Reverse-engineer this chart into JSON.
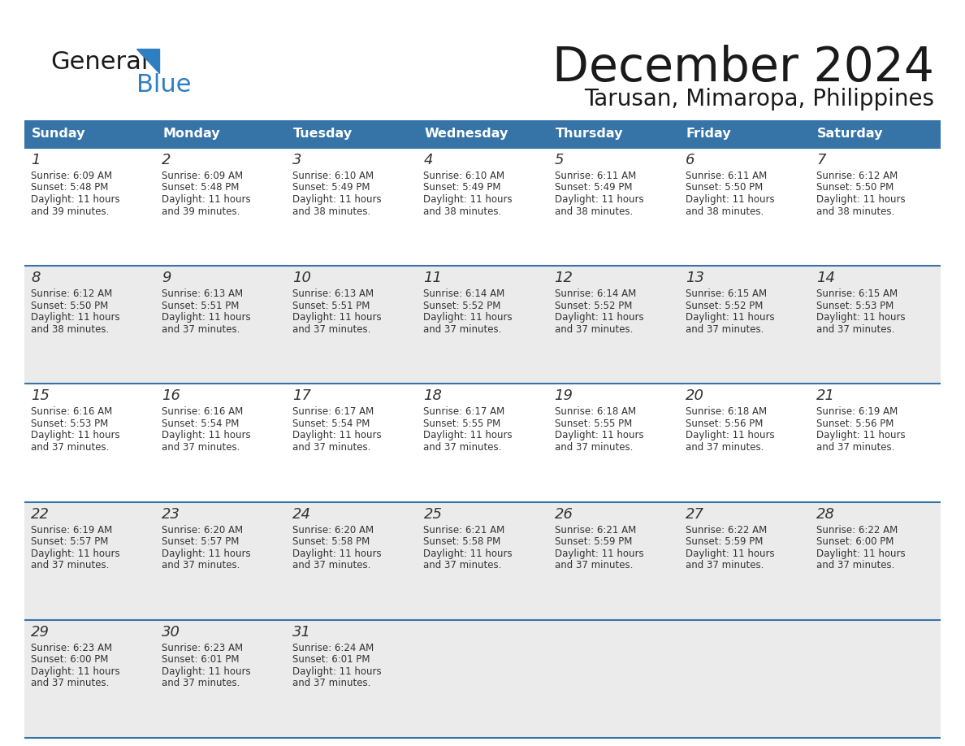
{
  "title": "December 2024",
  "subtitle": "Tarusan, Mimaropa, Philippines",
  "header_color": "#3674a8",
  "header_text_color": "#ffffff",
  "row_bg_colors": [
    "#ffffff",
    "#ebebeb",
    "#ffffff",
    "#ebebeb",
    "#ebebeb"
  ],
  "day_headers": [
    "Sunday",
    "Monday",
    "Tuesday",
    "Wednesday",
    "Thursday",
    "Friday",
    "Saturday"
  ],
  "border_color": "#3674a8",
  "text_color": "#333333",
  "day_num_color": "#333333",
  "logo_text_color": "#1a1a1a",
  "logo_blue_color": "#2e7fc2",
  "logo_triangle_color": "#2e7fc2",
  "calendar_data": [
    [
      {
        "day": 1,
        "sunrise": "6:09 AM",
        "sunset": "5:48 PM",
        "daylight": "11 hours and 39 minutes."
      },
      {
        "day": 2,
        "sunrise": "6:09 AM",
        "sunset": "5:48 PM",
        "daylight": "11 hours and 39 minutes."
      },
      {
        "day": 3,
        "sunrise": "6:10 AM",
        "sunset": "5:49 PM",
        "daylight": "11 hours and 38 minutes."
      },
      {
        "day": 4,
        "sunrise": "6:10 AM",
        "sunset": "5:49 PM",
        "daylight": "11 hours and 38 minutes."
      },
      {
        "day": 5,
        "sunrise": "6:11 AM",
        "sunset": "5:49 PM",
        "daylight": "11 hours and 38 minutes."
      },
      {
        "day": 6,
        "sunrise": "6:11 AM",
        "sunset": "5:50 PM",
        "daylight": "11 hours and 38 minutes."
      },
      {
        "day": 7,
        "sunrise": "6:12 AM",
        "sunset": "5:50 PM",
        "daylight": "11 hours and 38 minutes."
      }
    ],
    [
      {
        "day": 8,
        "sunrise": "6:12 AM",
        "sunset": "5:50 PM",
        "daylight": "11 hours and 38 minutes."
      },
      {
        "day": 9,
        "sunrise": "6:13 AM",
        "sunset": "5:51 PM",
        "daylight": "11 hours and 37 minutes."
      },
      {
        "day": 10,
        "sunrise": "6:13 AM",
        "sunset": "5:51 PM",
        "daylight": "11 hours and 37 minutes."
      },
      {
        "day": 11,
        "sunrise": "6:14 AM",
        "sunset": "5:52 PM",
        "daylight": "11 hours and 37 minutes."
      },
      {
        "day": 12,
        "sunrise": "6:14 AM",
        "sunset": "5:52 PM",
        "daylight": "11 hours and 37 minutes."
      },
      {
        "day": 13,
        "sunrise": "6:15 AM",
        "sunset": "5:52 PM",
        "daylight": "11 hours and 37 minutes."
      },
      {
        "day": 14,
        "sunrise": "6:15 AM",
        "sunset": "5:53 PM",
        "daylight": "11 hours and 37 minutes."
      }
    ],
    [
      {
        "day": 15,
        "sunrise": "6:16 AM",
        "sunset": "5:53 PM",
        "daylight": "11 hours and 37 minutes."
      },
      {
        "day": 16,
        "sunrise": "6:16 AM",
        "sunset": "5:54 PM",
        "daylight": "11 hours and 37 minutes."
      },
      {
        "day": 17,
        "sunrise": "6:17 AM",
        "sunset": "5:54 PM",
        "daylight": "11 hours and 37 minutes."
      },
      {
        "day": 18,
        "sunrise": "6:17 AM",
        "sunset": "5:55 PM",
        "daylight": "11 hours and 37 minutes."
      },
      {
        "day": 19,
        "sunrise": "6:18 AM",
        "sunset": "5:55 PM",
        "daylight": "11 hours and 37 minutes."
      },
      {
        "day": 20,
        "sunrise": "6:18 AM",
        "sunset": "5:56 PM",
        "daylight": "11 hours and 37 minutes."
      },
      {
        "day": 21,
        "sunrise": "6:19 AM",
        "sunset": "5:56 PM",
        "daylight": "11 hours and 37 minutes."
      }
    ],
    [
      {
        "day": 22,
        "sunrise": "6:19 AM",
        "sunset": "5:57 PM",
        "daylight": "11 hours and 37 minutes."
      },
      {
        "day": 23,
        "sunrise": "6:20 AM",
        "sunset": "5:57 PM",
        "daylight": "11 hours and 37 minutes."
      },
      {
        "day": 24,
        "sunrise": "6:20 AM",
        "sunset": "5:58 PM",
        "daylight": "11 hours and 37 minutes."
      },
      {
        "day": 25,
        "sunrise": "6:21 AM",
        "sunset": "5:58 PM",
        "daylight": "11 hours and 37 minutes."
      },
      {
        "day": 26,
        "sunrise": "6:21 AM",
        "sunset": "5:59 PM",
        "daylight": "11 hours and 37 minutes."
      },
      {
        "day": 27,
        "sunrise": "6:22 AM",
        "sunset": "5:59 PM",
        "daylight": "11 hours and 37 minutes."
      },
      {
        "day": 28,
        "sunrise": "6:22 AM",
        "sunset": "6:00 PM",
        "daylight": "11 hours and 37 minutes."
      }
    ],
    [
      {
        "day": 29,
        "sunrise": "6:23 AM",
        "sunset": "6:00 PM",
        "daylight": "11 hours and 37 minutes."
      },
      {
        "day": 30,
        "sunrise": "6:23 AM",
        "sunset": "6:01 PM",
        "daylight": "11 hours and 37 minutes."
      },
      {
        "day": 31,
        "sunrise": "6:24 AM",
        "sunset": "6:01 PM",
        "daylight": "11 hours and 37 minutes."
      },
      null,
      null,
      null,
      null
    ]
  ]
}
